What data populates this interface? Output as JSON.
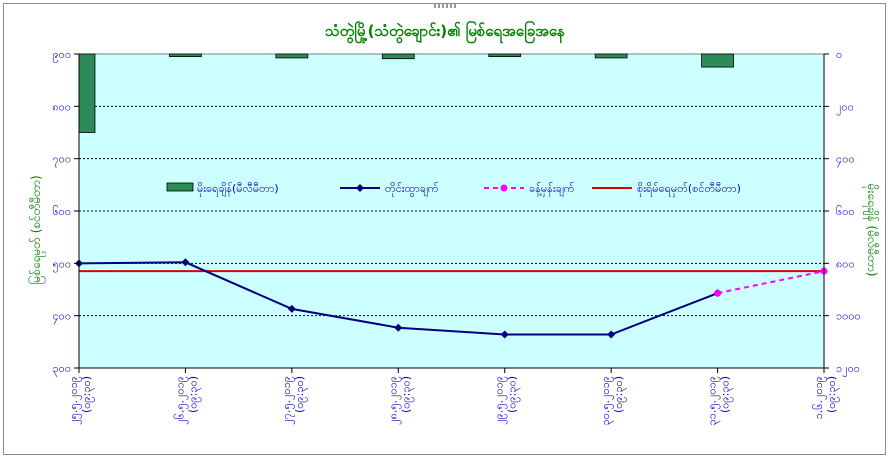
{
  "chart_data": {
    "type": "line",
    "title": "သံတွဲမြို့(သံတွဲချောင်း)၏ မြစ်ရေအခြေအနေ",
    "x": [
      "၂၅.၅.၂၀၁၉",
      "၂၆.၅.၂၀၁၉",
      "၂၇.၅.၂၀၁၉",
      "၂၈.၅.၂၀၁၉",
      "၂၉.၅.၂၀၁၉",
      "၃၀.၅.၂၀၁၉",
      "၃၁.၅.၂၀၁၉",
      "၁.၆.၂၀၁၉"
    ],
    "x_times": [
      "(၀၉:၃၀)",
      "(၀၉:၃၀)",
      "(၀၉:၃၀)",
      "(၀၉:၃၀)",
      "(၀၉:၃၀)",
      "(၀၉:၃၀)",
      "(၀၉:၃၀)",
      "(၀၉:၃၀)"
    ],
    "ylabel": "မြစ်ရေမှတ် (စင်တီမီတာ)",
    "ylim": [
      300,
      900
    ],
    "yticks": [
      300,
      400,
      500,
      600,
      700,
      800,
      900
    ],
    "yticks_labels": [
      "၃၀၀",
      "၄၀၀",
      "၅၀၀",
      "၆၀၀",
      "၇၀၀",
      "၈၀၀",
      "၉၀၀"
    ],
    "y2label": "မိုးရေချိန် (မီလီမီတာ)",
    "y2lim": [
      0,
      1200
    ],
    "y2_reversed": true,
    "y2ticks": [
      0,
      200,
      400,
      600,
      800,
      1000,
      1200
    ],
    "y2ticks_labels": [
      "၀",
      "၂၀၀",
      "၄၀၀",
      "၆၀၀",
      "၈၀၀",
      "၁၀၀၀",
      "၁၂၀၀"
    ],
    "grid": true,
    "legend_position": "center",
    "series": [
      {
        "name": "မိုးရေချိန်(မီလီမီတာ)",
        "type": "bar",
        "axis": "y2",
        "color": "#2e8b57",
        "values": [
          300,
          10,
          15,
          18,
          10,
          15,
          50,
          0
        ]
      },
      {
        "name": "တိုင်းထွာချက်",
        "type": "line",
        "axis": "y",
        "color": "#000080",
        "marker": "diamond",
        "values": [
          500,
          502,
          413,
          377,
          364,
          364,
          443,
          null
        ]
      },
      {
        "name": "ခန့်မှန်းချက်",
        "type": "line",
        "axis": "y",
        "color": "#ff00ff",
        "dashed": true,
        "marker": "circle",
        "values": [
          null,
          null,
          null,
          null,
          null,
          null,
          443,
          485
        ]
      },
      {
        "name": "စိုးရိမ်ရေမှတ်(စင်တီမီတာ)",
        "type": "hline",
        "axis": "y",
        "color": "#dd0000",
        "value": 485
      }
    ]
  }
}
